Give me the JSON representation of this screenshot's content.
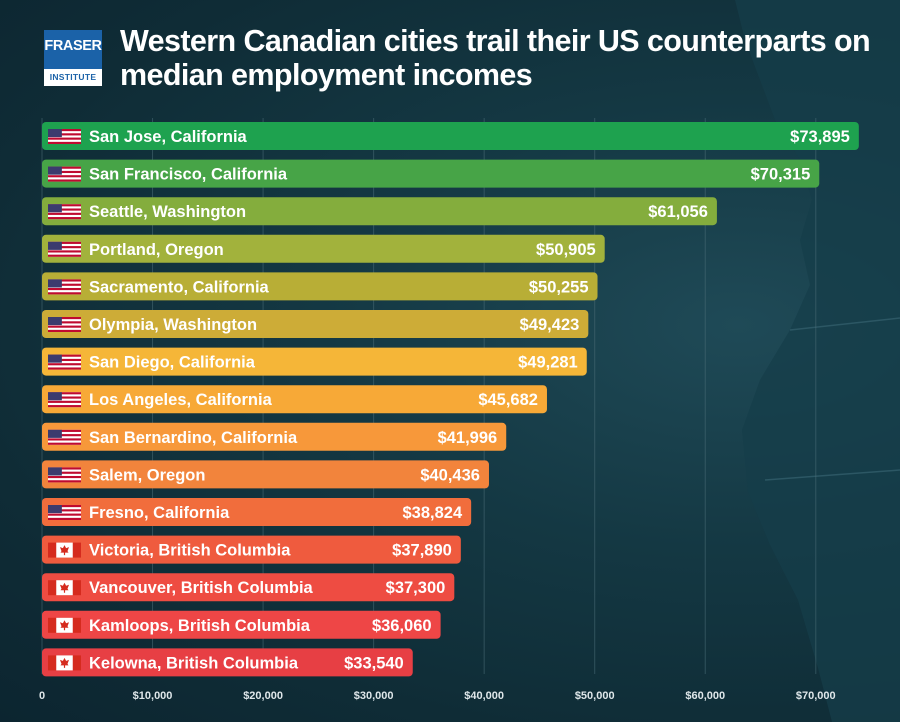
{
  "logo": {
    "line1": "FRASER",
    "line2": "INSTITUTE"
  },
  "title": "Western Canadian cities trail their US counterparts on median employment incomes",
  "colors": {
    "bar_ramp": [
      "#1ea24f",
      "#47a447",
      "#84ad3d",
      "#a2b23c",
      "#b8ae36",
      "#cdac37",
      "#f5b638",
      "#f7a937",
      "#f7983a",
      "#f2843c",
      "#f16d3c",
      "#ef5b3e",
      "#ee4c42",
      "#ee4646",
      "#e73f44"
    ],
    "us_flag": [
      "#bf0a30",
      "#ffffff",
      "#3c3b6e"
    ],
    "ca_flag": [
      "#d52b1e",
      "#ffffff"
    ]
  },
  "chart_data": {
    "type": "bar",
    "orientation": "horizontal",
    "categories": [
      "San Jose, California",
      "San Francisco, California",
      "Seattle, Washington",
      "Portland, Oregon",
      "Sacramento, California",
      "Olympia, Washington",
      "San Diego, California",
      "Los Angeles, California",
      "San Bernardino, California",
      "Salem, Oregon",
      "Fresno, California",
      "Victoria, British Columbia",
      "Vancouver, British Columbia",
      "Kamloops, British Columbia",
      "Kelowna, British Columbia"
    ],
    "countries": [
      "US",
      "US",
      "US",
      "US",
      "US",
      "US",
      "US",
      "US",
      "US",
      "US",
      "US",
      "CA",
      "CA",
      "CA",
      "CA"
    ],
    "values": [
      73895,
      70315,
      61056,
      50905,
      50255,
      49423,
      49281,
      45682,
      41996,
      40436,
      38824,
      37890,
      37300,
      36060,
      33540
    ],
    "value_labels": [
      "$73,895",
      "$70,315",
      "$61,056",
      "$50,905",
      "$50,255",
      "$49,423",
      "$49,281",
      "$45,682",
      "$41,996",
      "$40,436",
      "$38,824",
      "$37,890",
      "$37,300",
      "$36,060",
      "$33,540"
    ],
    "x_ticks": [
      0,
      10000,
      20000,
      30000,
      40000,
      50000,
      60000,
      70000
    ],
    "x_tick_labels": [
      "0",
      "$10,000",
      "$20,000",
      "$30,000",
      "$40,000",
      "$50,000",
      "$60,000",
      "$70,000"
    ],
    "xlim": [
      0,
      74000
    ],
    "grid": true
  }
}
